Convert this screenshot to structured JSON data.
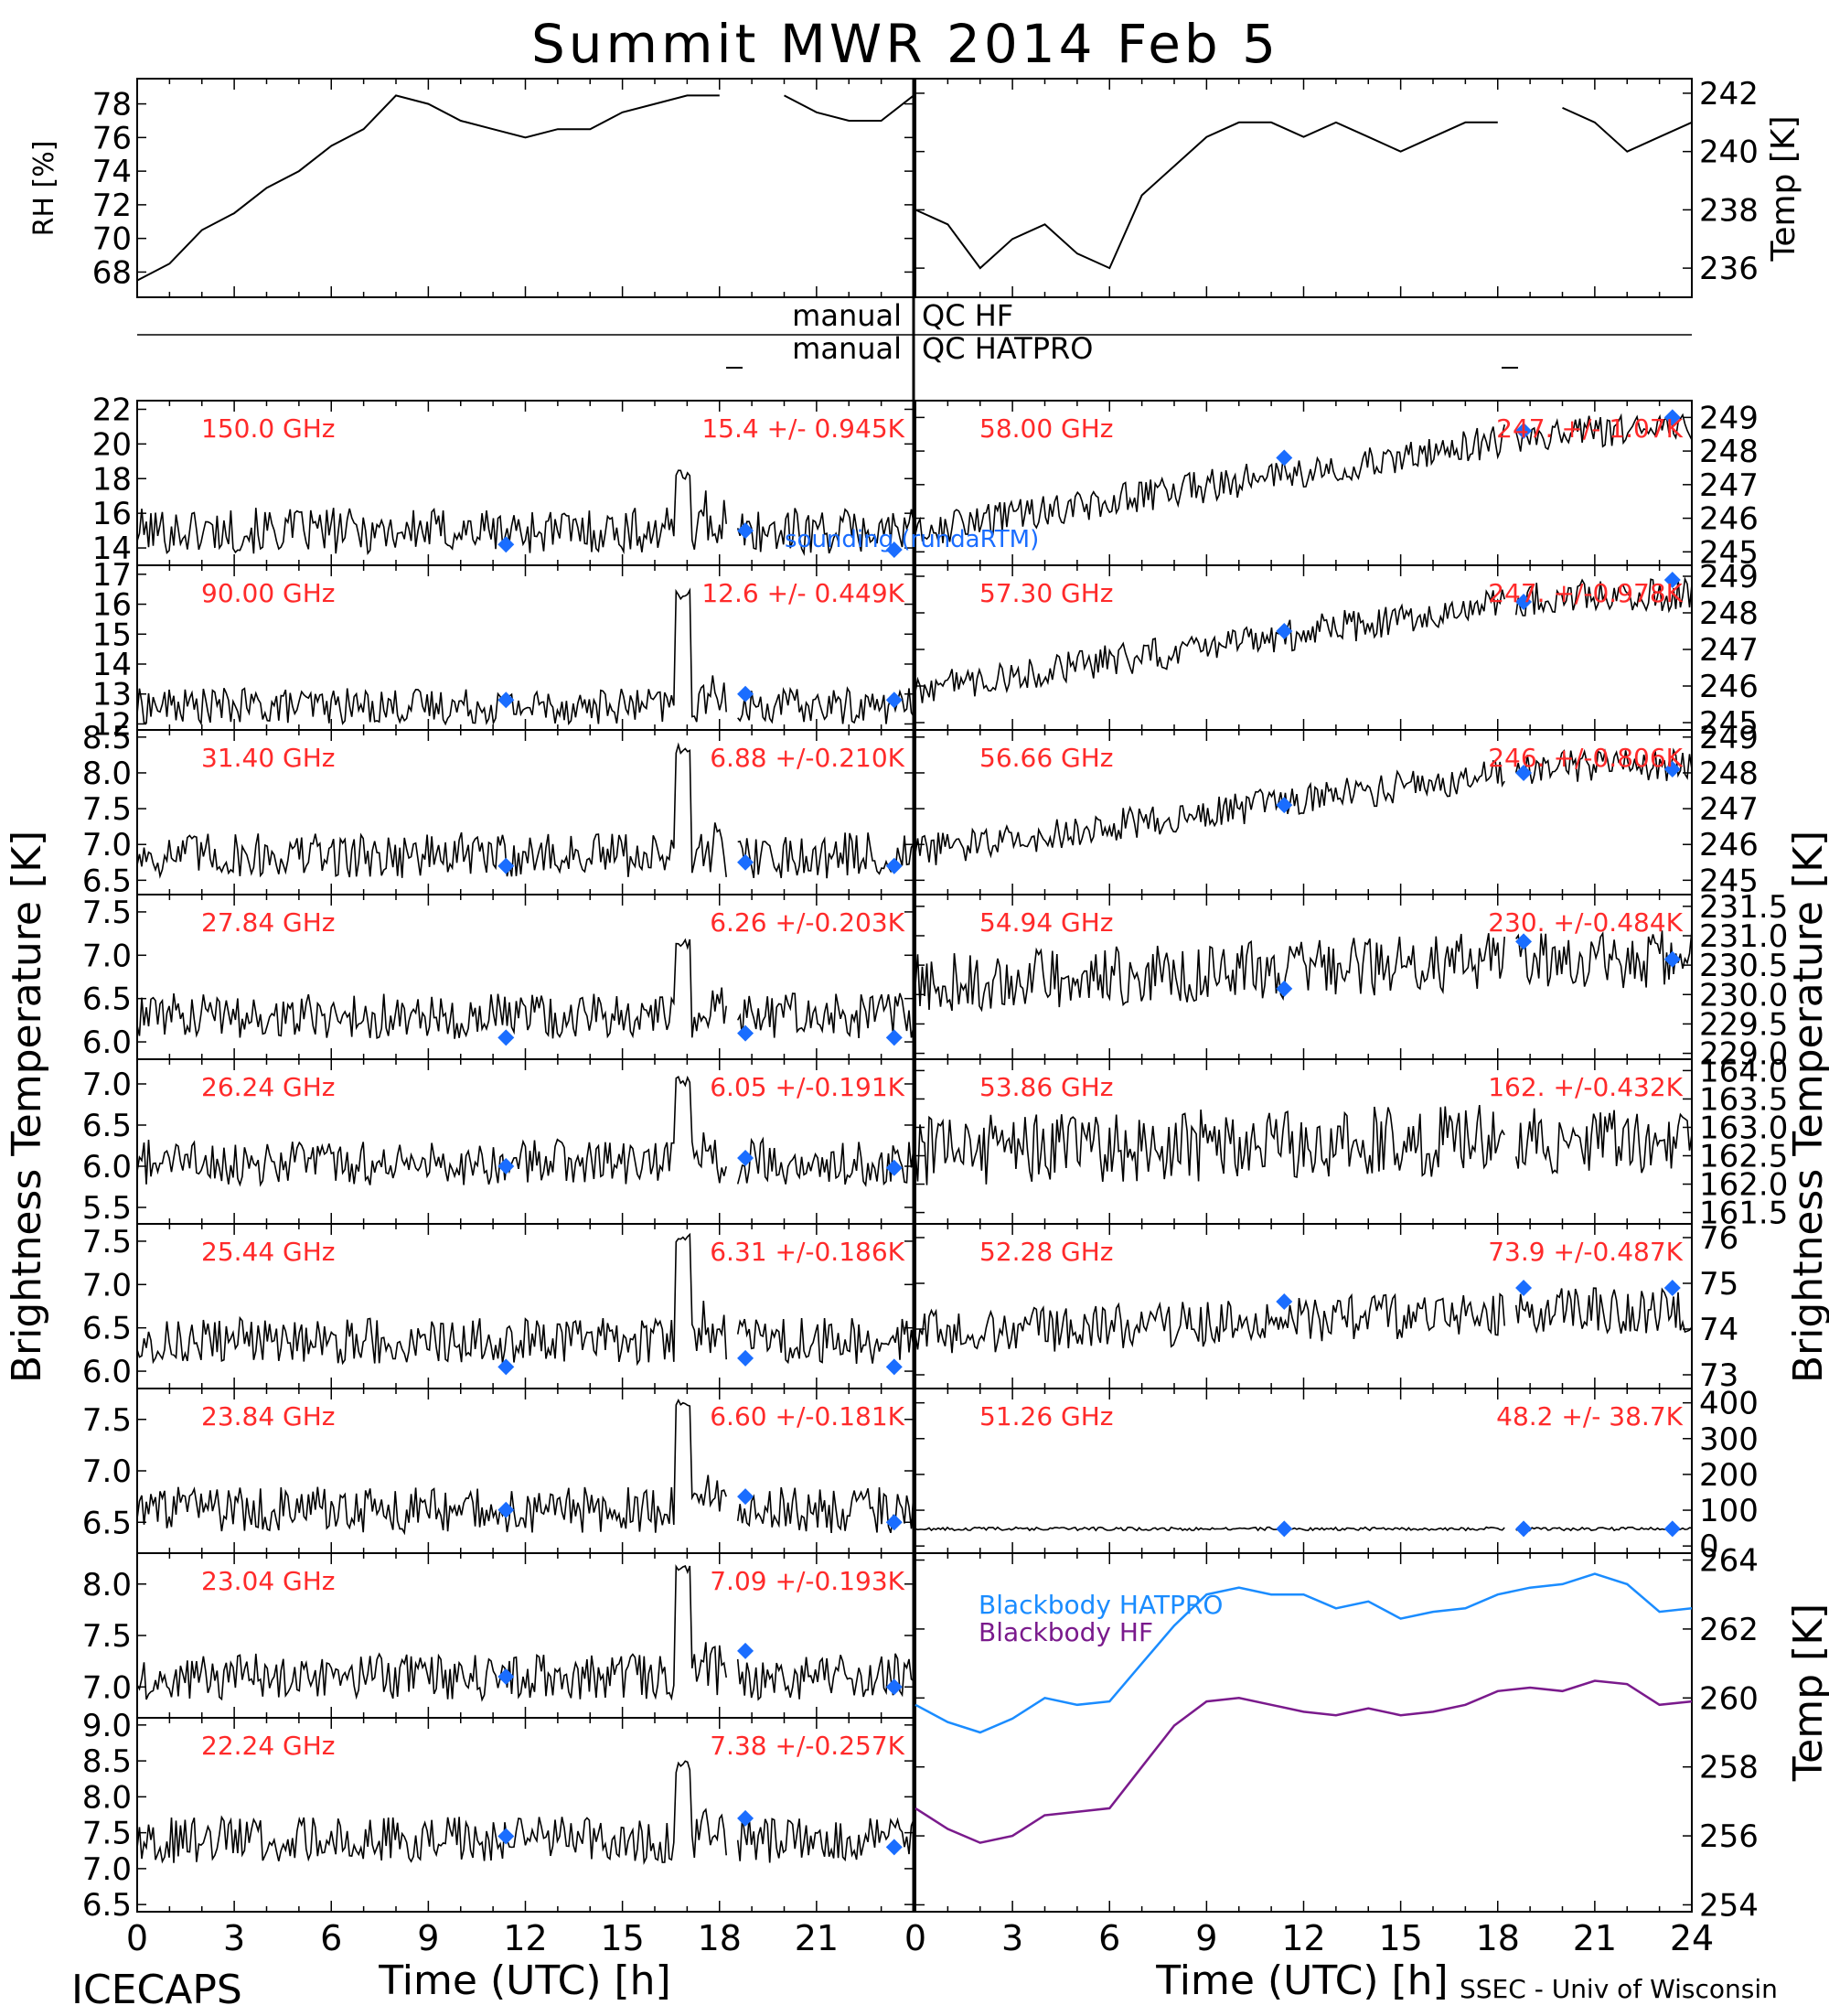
{
  "title": "Summit MWR 2014 Feb  5",
  "footer_left": "ICECAPS",
  "footer_right": "SSEC - Univ of Wisconsin",
  "x_axis_label": "Time (UTC) [h]",
  "y_axis_left_label": "Brightness Temperature [K]",
  "y_axis_right_label": "Brightness Temperature [K]",
  "colors": {
    "trace": "#000000",
    "annotation": "#ff2a2a",
    "sonde": "#1a6dff",
    "bb_hatpro": "#1a8cff",
    "bb_hf": "#7a1a8c"
  },
  "qc": {
    "hf_left": "manual",
    "hf_right": "QC HF",
    "hatpro_left": "manual",
    "hatpro_right": "QC HATPRO"
  },
  "legend_sounding": "sounding (rundaRTM)",
  "chart_data": [
    {
      "type": "line",
      "panel": "rh",
      "ylabel": "RH [%]",
      "xlim": [
        0,
        24
      ],
      "ylim": [
        66.5,
        79.5
      ],
      "ticks": [
        "68",
        "70",
        "72",
        "74",
        "76",
        "78"
      ],
      "x": [
        0,
        1,
        2,
        3,
        4,
        5,
        6,
        7,
        8,
        9,
        10,
        11,
        12,
        13,
        14,
        15,
        16,
        17,
        18,
        19,
        20,
        21,
        22,
        23,
        24
      ],
      "values": [
        67.5,
        68.5,
        70.5,
        71.5,
        73,
        74,
        75.5,
        76.5,
        78.5,
        78,
        77,
        76.5,
        76,
        76.5,
        76.5,
        77.5,
        78,
        78.5,
        78.5,
        null,
        78.5,
        77.5,
        77,
        77,
        78.5
      ]
    },
    {
      "type": "line",
      "panel": "temp",
      "ylabel": "Temp [K]",
      "xlim": [
        0,
        24
      ],
      "ylim": [
        235.0,
        242.5
      ],
      "ticks": [
        "236",
        "238",
        "240",
        "242"
      ],
      "x": [
        0,
        1,
        2,
        3,
        4,
        5,
        6,
        7,
        8,
        9,
        10,
        11,
        12,
        13,
        14,
        15,
        16,
        17,
        18,
        19,
        20,
        21,
        22,
        23,
        24
      ],
      "values": [
        238,
        237.5,
        236,
        237,
        237.5,
        236.5,
        236,
        238.5,
        239.5,
        240.5,
        241,
        241,
        240.5,
        241,
        240.5,
        240,
        240.5,
        241,
        241,
        null,
        241.5,
        241,
        240,
        240.5,
        241
      ]
    },
    {
      "type": "line",
      "panel": "ch-150.0",
      "label": "150.0 GHz",
      "stat": "15.4 +/- 0.945K",
      "side": "left",
      "ylim": [
        13.0,
        22.5
      ],
      "ticks": [
        "14",
        "16",
        "18",
        "20",
        "22"
      ],
      "baseline": 15.0,
      "noise_pct": 14,
      "spike": 18.5,
      "sonde": [
        [
          11.4,
          14.2
        ],
        [
          18.8,
          15.0
        ],
        [
          23.4,
          13.9
        ]
      ]
    },
    {
      "type": "line",
      "panel": "ch-90.00",
      "label": "90.00 GHz",
      "stat": "12.6 +/- 0.449K",
      "side": "left",
      "ylim": [
        11.8,
        17.3
      ],
      "ticks": [
        "12",
        "13",
        "14",
        "15",
        "16",
        "17"
      ],
      "baseline": 12.6,
      "noise_pct": 11,
      "spike": 16.5,
      "sonde": [
        [
          11.4,
          12.8
        ],
        [
          18.8,
          13.0
        ],
        [
          23.4,
          12.8
        ]
      ]
    },
    {
      "type": "line",
      "panel": "ch-31.40",
      "label": "31.40 GHz",
      "stat": "6.88 +/-0.210K",
      "side": "left",
      "ylim": [
        6.3,
        8.6
      ],
      "ticks": [
        "6.5",
        "7.0",
        "7.5",
        "8.0",
        "8.5"
      ],
      "baseline": 6.85,
      "noise_pct": 14,
      "spike": 8.4,
      "sonde": [
        [
          11.4,
          6.7
        ],
        [
          18.8,
          6.75
        ],
        [
          23.4,
          6.7
        ]
      ]
    },
    {
      "type": "line",
      "panel": "ch-27.84",
      "label": "27.84 GHz",
      "stat": "6.26 +/-0.203K",
      "side": "left",
      "ylim": [
        5.8,
        7.7
      ],
      "ticks": [
        "6.0",
        "6.5",
        "7.0",
        "7.5"
      ],
      "baseline": 6.3,
      "noise_pct": 14,
      "spike": 7.2,
      "sonde": [
        [
          11.4,
          6.05
        ],
        [
          18.8,
          6.1
        ],
        [
          23.4,
          6.05
        ]
      ]
    },
    {
      "type": "line",
      "panel": "ch-26.24",
      "label": "26.24 GHz",
      "stat": "6.05 +/-0.191K",
      "side": "left",
      "ylim": [
        5.3,
        7.3
      ],
      "ticks": [
        "5.5",
        "6.0",
        "6.5",
        "7.0"
      ],
      "baseline": 6.05,
      "noise_pct": 14,
      "spike": 7.1,
      "sonde": [
        [
          11.4,
          6.0
        ],
        [
          18.8,
          6.1
        ],
        [
          23.4,
          5.98
        ]
      ]
    },
    {
      "type": "line",
      "panel": "ch-25.44",
      "label": "25.44 GHz",
      "stat": "6.31 +/-0.186K",
      "side": "left",
      "ylim": [
        5.8,
        7.7
      ],
      "ticks": [
        "6.0",
        "6.5",
        "7.0",
        "7.5"
      ],
      "baseline": 6.35,
      "noise_pct": 14,
      "spike": 7.6,
      "sonde": [
        [
          11.4,
          6.05
        ],
        [
          18.8,
          6.15
        ],
        [
          23.4,
          6.05
        ]
      ]
    },
    {
      "type": "line",
      "panel": "ch-23.84",
      "label": "23.84 GHz",
      "stat": "6.60 +/-0.181K",
      "side": "left",
      "ylim": [
        6.2,
        7.8
      ],
      "ticks": [
        "6.5",
        "7.0",
        "7.5"
      ],
      "baseline": 6.62,
      "noise_pct": 14,
      "spike": 7.7,
      "sonde": [
        [
          11.4,
          6.62
        ],
        [
          18.8,
          6.75
        ],
        [
          23.4,
          6.5
        ]
      ]
    },
    {
      "type": "line",
      "panel": "ch-23.04",
      "label": "23.04 GHz",
      "stat": "7.09 +/-0.193K",
      "side": "left",
      "ylim": [
        6.7,
        8.3
      ],
      "ticks": [
        "7.0",
        "7.5",
        "8.0"
      ],
      "baseline": 7.1,
      "noise_pct": 14,
      "spike": 8.2,
      "sonde": [
        [
          11.4,
          7.1
        ],
        [
          18.8,
          7.35
        ],
        [
          23.4,
          7.0
        ]
      ]
    },
    {
      "type": "line",
      "panel": "ch-22.24",
      "label": "22.24 GHz",
      "stat": "7.38 +/-0.257K",
      "side": "left",
      "ylim": [
        6.4,
        9.1
      ],
      "ticks": [
        "6.5",
        "7.0",
        "7.5",
        "8.0",
        "8.5",
        "9.0"
      ],
      "baseline": 7.4,
      "noise_pct": 12,
      "spike": 8.5,
      "sonde": [
        [
          11.4,
          7.45
        ],
        [
          18.8,
          7.7
        ],
        [
          23.4,
          7.3
        ]
      ]
    },
    {
      "type": "line",
      "panel": "ch-58.00",
      "label": "58.00 GHz",
      "stat": "247. +/- 1.07K",
      "side": "right",
      "ylim": [
        244.6,
        249.5
      ],
      "ticks": [
        "245",
        "246",
        "247",
        "248",
        "249"
      ],
      "ramp": [
        245.6,
        248.6
      ],
      "noise_pct": 10,
      "sonde": [
        [
          11.4,
          247.8
        ],
        [
          18.8,
          248.6
        ],
        [
          23.4,
          249.0
        ]
      ]
    },
    {
      "type": "line",
      "panel": "ch-57.30",
      "label": "57.30 GHz",
      "stat": "247. +/-0.978K",
      "side": "right",
      "ylim": [
        244.8,
        249.3
      ],
      "ticks": [
        "245",
        "246",
        "247",
        "248",
        "249"
      ],
      "ramp": [
        245.9,
        248.5
      ],
      "noise_pct": 10,
      "sonde": [
        [
          11.4,
          247.5
        ],
        [
          18.8,
          248.3
        ],
        [
          23.4,
          248.9
        ]
      ]
    },
    {
      "type": "line",
      "panel": "ch-56.66",
      "label": "56.66 GHz",
      "stat": "246. +/-0.806K",
      "side": "right",
      "ylim": [
        244.6,
        249.2
      ],
      "ticks": [
        "245",
        "246",
        "247",
        "248",
        "249"
      ],
      "ramp": [
        245.8,
        248.2
      ],
      "noise_pct": 10,
      "sonde": [
        [
          11.4,
          247.1
        ],
        [
          18.8,
          248.0
        ],
        [
          23.4,
          248.1
        ]
      ]
    },
    {
      "type": "line",
      "panel": "ch-54.94",
      "label": "54.94 GHz",
      "stat": "230. +/-0.484K",
      "side": "right",
      "ylim": [
        228.9,
        231.7
      ],
      "ticks": [
        "229.0",
        "229.5",
        "230.0",
        "230.5",
        "231.0",
        "231.5"
      ],
      "ramp": [
        230.2,
        230.6
      ],
      "noise_pct": 18,
      "sonde": [
        [
          11.4,
          230.1
        ],
        [
          18.8,
          230.9
        ],
        [
          23.4,
          230.6
        ]
      ]
    },
    {
      "type": "line",
      "panel": "ch-53.86",
      "label": "53.86 GHz",
      "stat": "162. +/-0.432K",
      "side": "right",
      "ylim": [
        161.3,
        164.2
      ],
      "ticks": [
        "161.5",
        "162.0",
        "162.5",
        "163.0",
        "163.5",
        "164.0"
      ],
      "ramp": [
        162.6,
        162.8
      ],
      "noise_pct": 22,
      "sonde": []
    },
    {
      "type": "line",
      "panel": "ch-52.28",
      "label": "52.28 GHz",
      "stat": "73.9 +/-0.487K",
      "side": "right",
      "ylim": [
        72.7,
        76.3
      ],
      "ticks": [
        "73",
        "74",
        "75",
        "76"
      ],
      "ramp": [
        73.9,
        74.4
      ],
      "noise_pct": 14,
      "sonde": [
        [
          11.4,
          74.6
        ],
        [
          18.8,
          74.9
        ],
        [
          23.4,
          74.9
        ]
      ]
    },
    {
      "type": "line",
      "panel": "ch-51.26",
      "label": "51.26 GHz",
      "stat": "48.2 +/- 38.7K",
      "side": "right",
      "ylim": [
        -20,
        440
      ],
      "ticks": [
        "0",
        "100",
        "200",
        "300",
        "400"
      ],
      "ramp": [
        48,
        48
      ],
      "noise_pct": 1,
      "sonde": [
        [
          11.4,
          48
        ],
        [
          18.8,
          48
        ],
        [
          23.4,
          48
        ]
      ]
    },
    {
      "type": "line",
      "panel": "blackbody",
      "ylabel": "Temp [K]",
      "xlim": [
        0,
        24
      ],
      "ylim": [
        253.8,
        264.2
      ],
      "ticks": [
        "254",
        "256",
        "258",
        "260",
        "262",
        "264"
      ],
      "x": [
        0,
        1,
        2,
        3,
        4,
        5,
        6,
        7,
        8,
        9,
        10,
        11,
        12,
        13,
        14,
        15,
        16,
        17,
        18,
        19,
        20,
        21,
        22,
        23,
        24
      ],
      "series": [
        {
          "name": "Blackbody HATPRO",
          "values": [
            259.8,
            259.3,
            259.0,
            259.4,
            260.0,
            259.8,
            259.9,
            261.0,
            262.1,
            263.0,
            263.2,
            263.0,
            263.0,
            262.6,
            262.8,
            262.3,
            262.5,
            262.6,
            263.0,
            263.2,
            263.3,
            263.6,
            263.3,
            262.5,
            262.6
          ]
        },
        {
          "name": "Blackbody HF",
          "values": [
            256.8,
            256.2,
            255.8,
            256.0,
            256.6,
            256.7,
            256.8,
            258.0,
            259.2,
            259.9,
            260.0,
            259.8,
            259.6,
            259.5,
            259.7,
            259.5,
            259.6,
            259.8,
            260.2,
            260.3,
            260.2,
            260.5,
            260.4,
            259.8,
            259.9
          ]
        }
      ]
    }
  ]
}
